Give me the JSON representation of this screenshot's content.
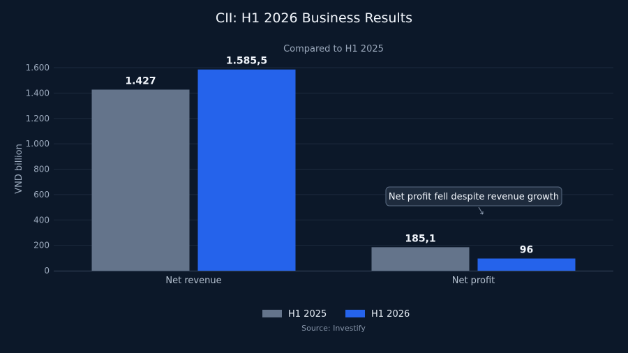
{
  "chart_data": {
    "type": "bar",
    "title": "CII: H1 2026 Business Results",
    "subtitle": "Compared to H1 2025",
    "ylabel": "VND billion",
    "xlabel": "",
    "categories": [
      "Net revenue",
      "Net profit"
    ],
    "series": [
      {
        "name": "H1 2025",
        "values": [
          1427,
          185.1
        ],
        "labels": [
          "1.427",
          "185,1"
        ],
        "color": "#64748b"
      },
      {
        "name": "H1 2026",
        "values": [
          1585.5,
          96
        ],
        "labels": [
          "1.585,5",
          "96"
        ],
        "color": "#2563eb"
      }
    ],
    "ylim": [
      0,
      1650
    ],
    "yticks": [
      0,
      200,
      400,
      600,
      800,
      1000,
      1200,
      1400,
      1600
    ],
    "ytick_labels": [
      "0",
      "200",
      "400",
      "600",
      "800",
      "1.000",
      "1.200",
      "1.400",
      "1.600"
    ],
    "grid": true,
    "legend": "bottom-center",
    "annotation": {
      "text": "Net profit fell despite revenue growth",
      "category": "Net profit"
    },
    "source": "Source: Investify"
  }
}
